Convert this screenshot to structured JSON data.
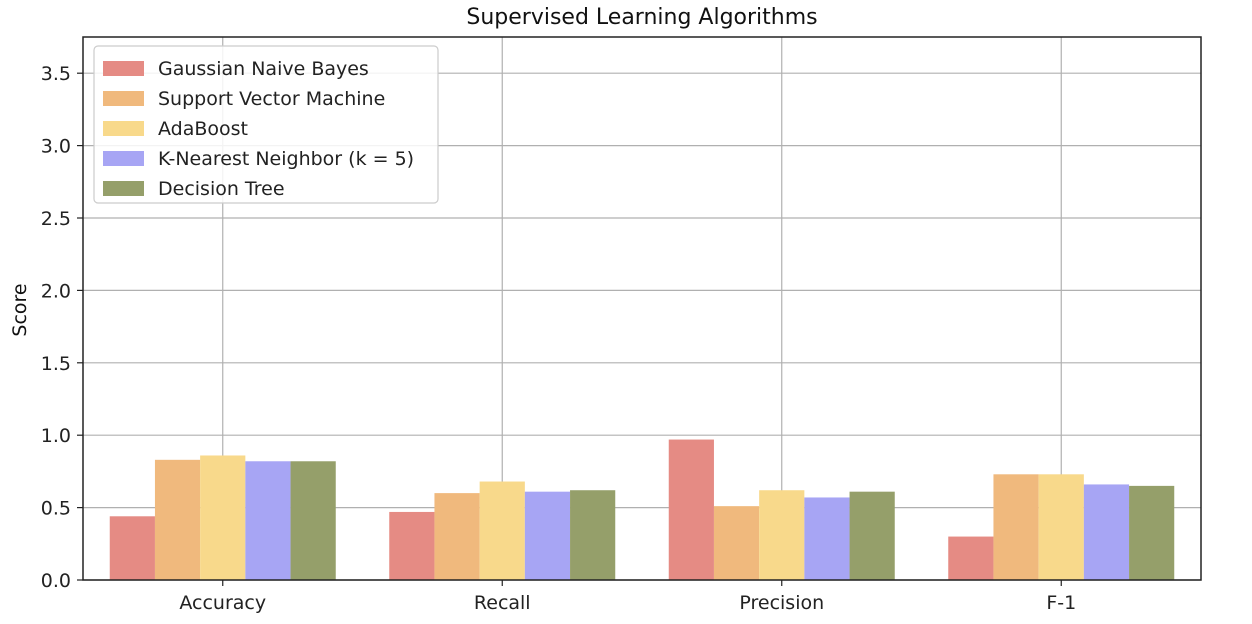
{
  "chart_data": {
    "type": "bar",
    "title": "Supervised Learning Algorithms",
    "xlabel": "",
    "ylabel": "Score",
    "categories": [
      "Accuracy",
      "Recall",
      "Precision",
      "F-1"
    ],
    "ylim": [
      0,
      3.75
    ],
    "yticks": [
      "0.0",
      "0.5",
      "1.0",
      "1.5",
      "2.0",
      "2.5",
      "3.0",
      "3.5"
    ],
    "grid": true,
    "legend_position": "top-left",
    "series": [
      {
        "name": "Gaussian Naive Bayes",
        "color": "#e58b84",
        "values": [
          0.44,
          0.47,
          0.97,
          0.3
        ]
      },
      {
        "name": "Support Vector Machine",
        "color": "#f0b97d",
        "values": [
          0.83,
          0.6,
          0.51,
          0.73
        ]
      },
      {
        "name": "AdaBoost",
        "color": "#f8d98b",
        "values": [
          0.86,
          0.68,
          0.62,
          0.73
        ]
      },
      {
        "name": "K-Nearest Neighbor (k = 5)",
        "color": "#a7a5f4",
        "values": [
          0.82,
          0.61,
          0.57,
          0.66
        ]
      },
      {
        "name": "Decision Tree",
        "color": "#959f6a",
        "values": [
          0.82,
          0.62,
          0.61,
          0.65
        ]
      }
    ]
  }
}
